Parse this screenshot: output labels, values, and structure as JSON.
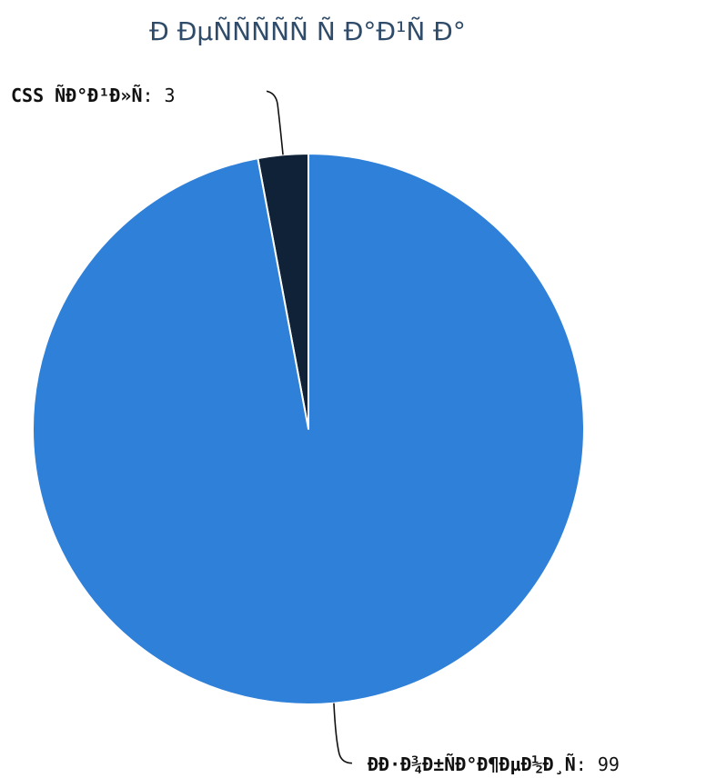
{
  "chart_data": {
    "type": "pie",
    "title": "Ð ÐµÑÑÑÑÑ Ñ Ð°Ð¹Ñ Ð°",
    "slices": [
      {
        "name": "CSS ÑÐ°Ð¹Ð»Ñ",
        "value": 3,
        "color": "#0f2238",
        "value_text": "3"
      },
      {
        "name": "ÐÐ·Ð¾Ð±ÑÐ°Ð¶ÐµÐ½Ð¸Ñ",
        "value": 99,
        "color": "#2f80d8",
        "value_text": "99"
      }
    ],
    "label_separator": ":",
    "legend": "none",
    "slice_border": "#ffffff"
  }
}
